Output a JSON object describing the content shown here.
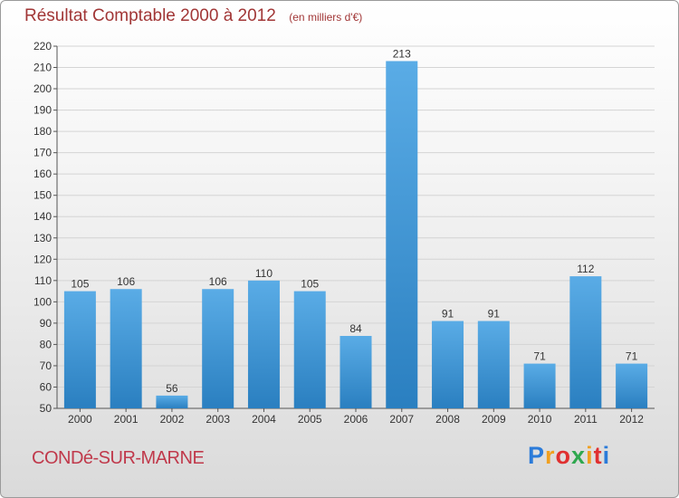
{
  "header": {
    "title": "Résultat Comptable 2000 à 2012",
    "subtitle": "(en milliers d'€)"
  },
  "footer": {
    "commune": "CONDé-SUR-MARNE",
    "logo_letters": [
      "P",
      "r",
      "o",
      "x",
      "i",
      "t",
      "i"
    ],
    "logo_colors": [
      "#2b7bd9",
      "#f0a020",
      "#e03030",
      "#2fa84f",
      "#f0a020",
      "#e03030",
      "#2b7bd9"
    ]
  },
  "colors": {
    "bar_top": "#5aace6",
    "bar_bottom": "#2a7fc0",
    "grid": "#d4d4d4",
    "title": "#a13636"
  },
  "chart_data": {
    "type": "bar",
    "categories": [
      "2000",
      "2001",
      "2002",
      "2003",
      "2004",
      "2005",
      "2006",
      "2007",
      "2008",
      "2009",
      "2010",
      "2011",
      "2012"
    ],
    "values": [
      105,
      106,
      56,
      106,
      110,
      105,
      84,
      213,
      91,
      91,
      71,
      112,
      71
    ],
    "ylim": [
      50,
      220
    ],
    "yticks": [
      50,
      60,
      70,
      80,
      90,
      100,
      110,
      120,
      130,
      140,
      150,
      160,
      170,
      180,
      190,
      200,
      210,
      220
    ],
    "grid": true,
    "data_labels": true
  }
}
